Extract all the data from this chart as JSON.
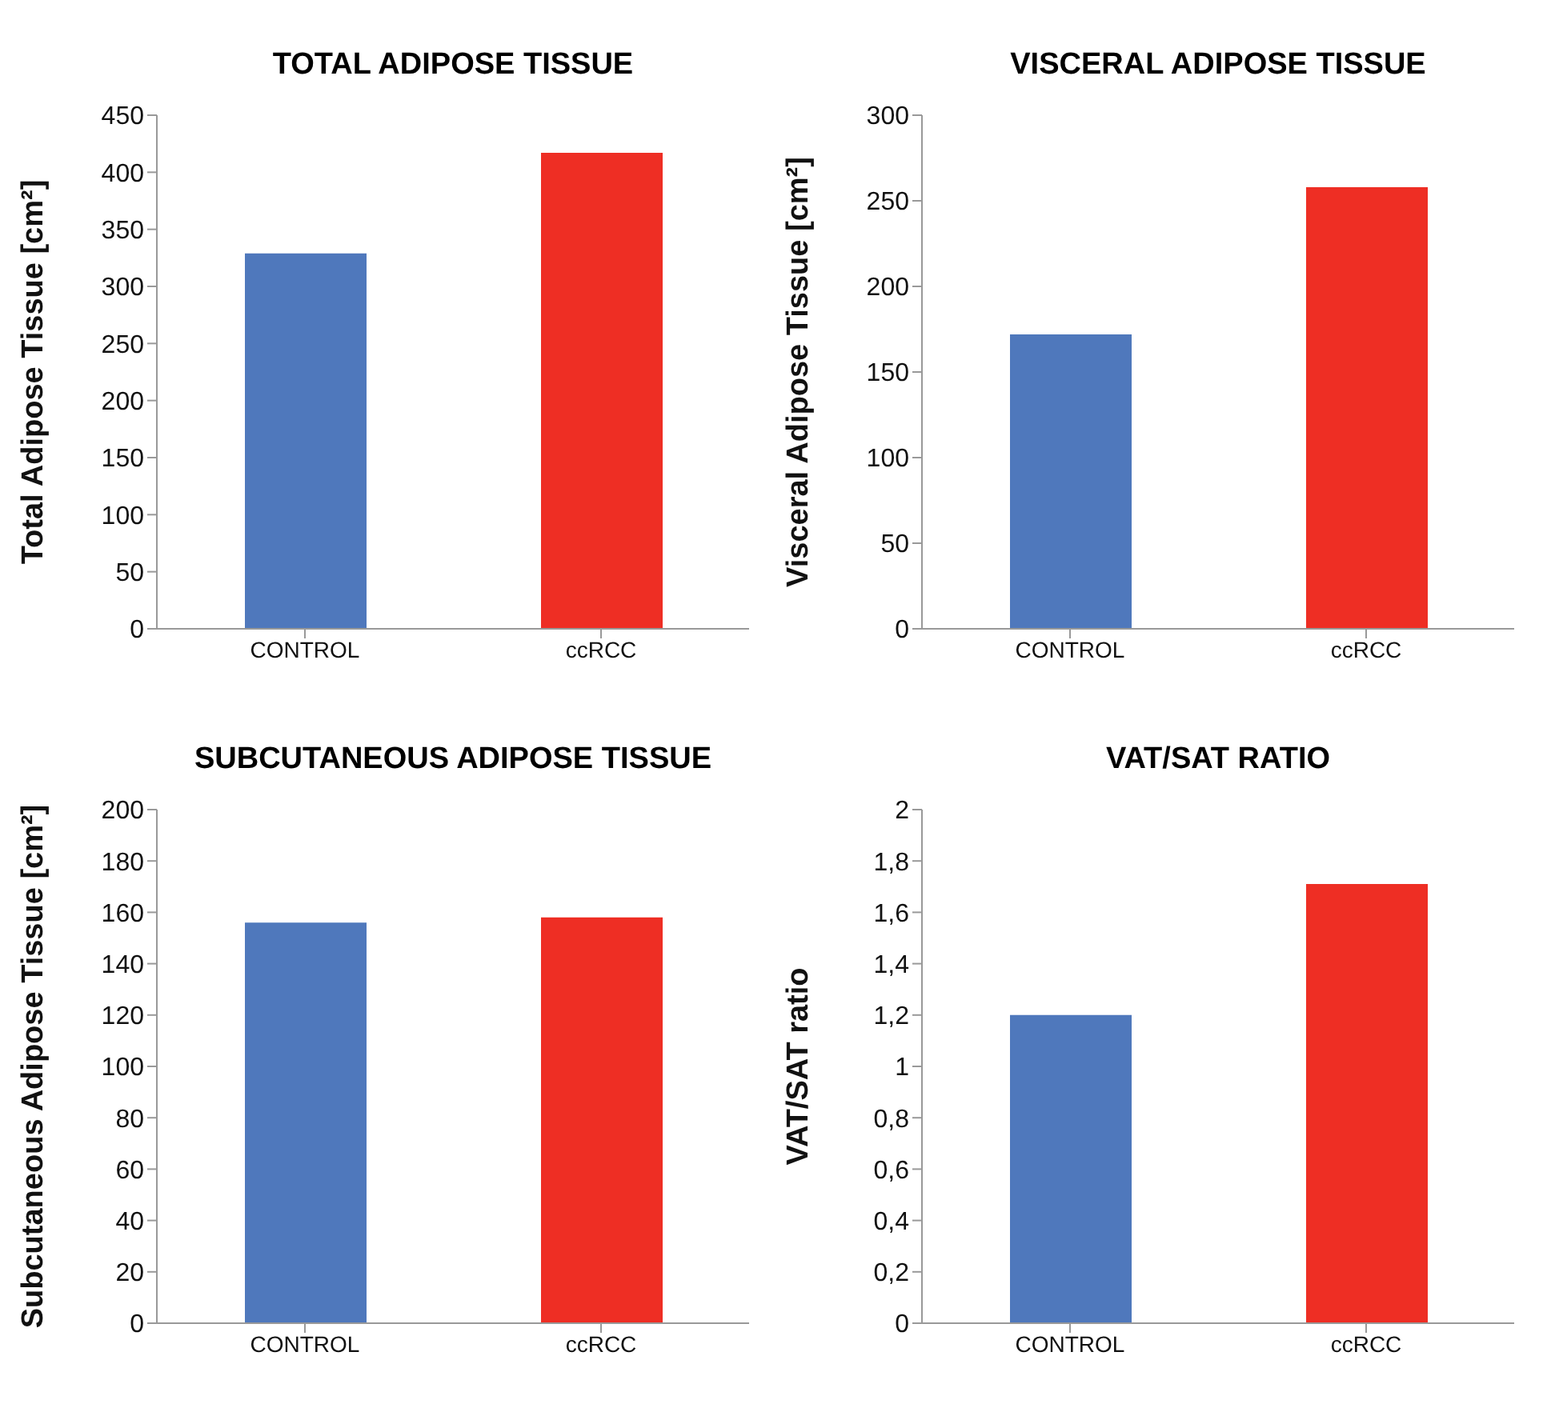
{
  "chart_data": [
    {
      "type": "bar",
      "title": "TOTAL ADIPOSE TISSUE",
      "ylabel": "Total Adipose Tissue [cm²]",
      "categories": [
        "CONTROL",
        "ccRCC"
      ],
      "values": [
        329,
        417
      ],
      "colors": [
        "#4f78bc",
        "#ee2e24"
      ],
      "ylim": [
        0,
        450
      ],
      "yticks": [
        0,
        50,
        100,
        150,
        200,
        250,
        300,
        350,
        400,
        450
      ]
    },
    {
      "type": "bar",
      "title": "VISCERAL ADIPOSE TISSUE",
      "ylabel": "Visceral Adipose Tissue [cm²]",
      "categories": [
        "CONTROL",
        "ccRCC"
      ],
      "values": [
        172,
        258
      ],
      "colors": [
        "#4f78bc",
        "#ee2e24"
      ],
      "ylim": [
        0,
        300
      ],
      "yticks": [
        0,
        50,
        100,
        150,
        200,
        250,
        300
      ]
    },
    {
      "type": "bar",
      "title": "SUBCUTANEOUS ADIPOSE TISSUE",
      "ylabel": "Subcutaneous Adipose Tissue [cm²]",
      "categories": [
        "CONTROL",
        "ccRCC"
      ],
      "values": [
        156,
        158
      ],
      "colors": [
        "#4f78bc",
        "#ee2e24"
      ],
      "ylim": [
        0,
        200
      ],
      "yticks": [
        0,
        20,
        40,
        60,
        80,
        100,
        120,
        140,
        160,
        180,
        200
      ]
    },
    {
      "type": "bar",
      "title": "VAT/SAT RATIO",
      "ylabel": "VAT/SAT ratio",
      "categories": [
        "CONTROL",
        "ccRCC"
      ],
      "values": [
        1.2,
        1.71
      ],
      "colors": [
        "#4f78bc",
        "#ee2e24"
      ],
      "ylim": [
        0,
        2
      ],
      "yticks": [
        0,
        {
          "value": 0.2,
          "label": "0,2"
        },
        {
          "value": 0.4,
          "label": "0,4"
        },
        {
          "value": 0.6,
          "label": "0,6"
        },
        {
          "value": 0.8,
          "label": "0,8"
        },
        1,
        {
          "value": 1.2,
          "label": "1,2"
        },
        {
          "value": 1.4,
          "label": "1,4"
        },
        {
          "value": 1.6,
          "label": "1,6"
        },
        {
          "value": 1.8,
          "label": "1,8"
        },
        2
      ]
    }
  ]
}
